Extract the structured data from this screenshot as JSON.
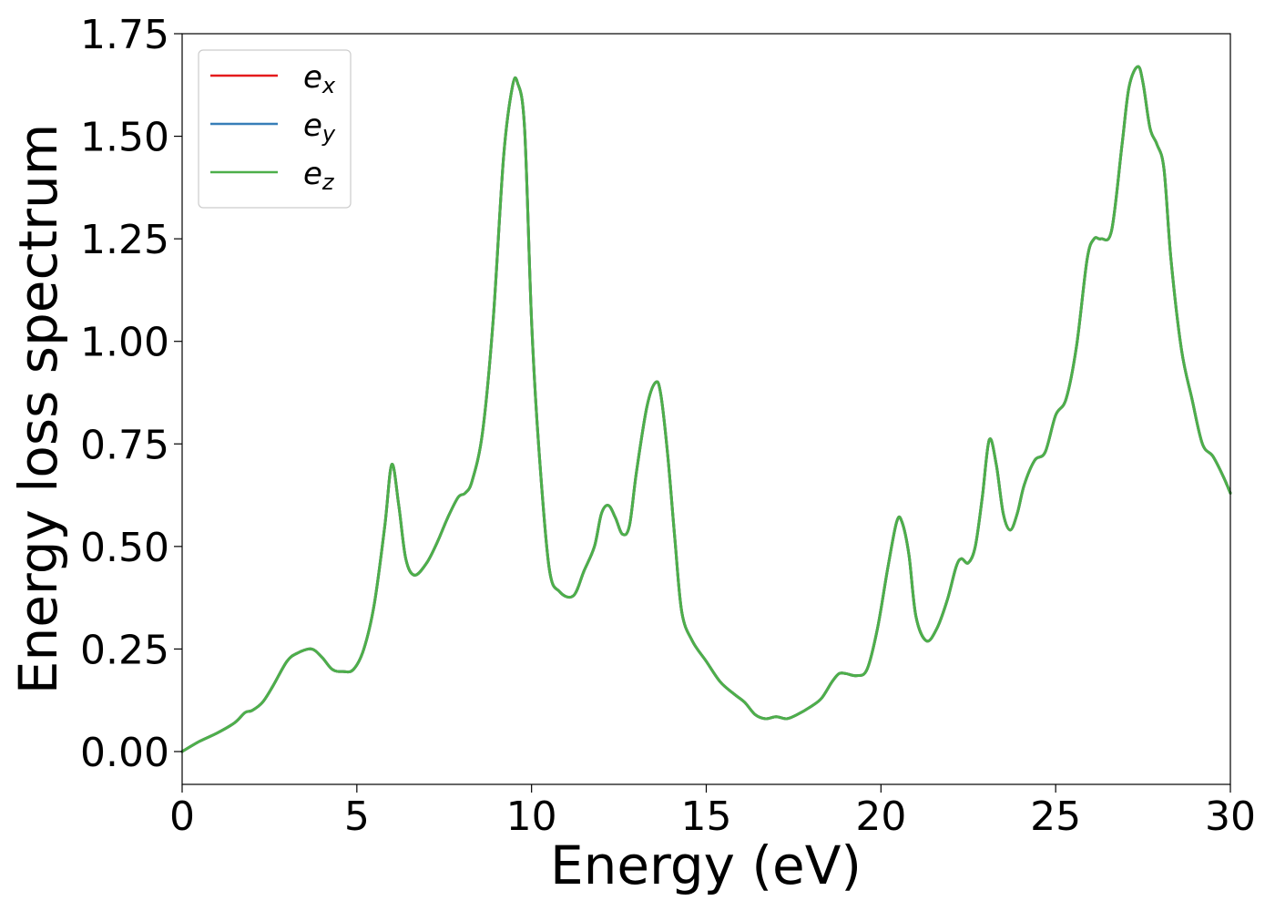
{
  "chart_data": {
    "type": "line",
    "title": "",
    "xlabel": "Energy (eV)",
    "ylabel": "Energy loss spectrum",
    "xlim": [
      0,
      30
    ],
    "ylim": [
      -0.08,
      1.75
    ],
    "xticks": [
      0,
      5,
      10,
      15,
      20,
      25,
      30
    ],
    "xtick_labels": [
      "0",
      "5",
      "10",
      "15",
      "20",
      "25",
      "30"
    ],
    "yticks": [
      0,
      0.25,
      0.5,
      0.75,
      1.0,
      1.25,
      1.5,
      1.75
    ],
    "ytick_labels": [
      "0.00",
      "0.25",
      "0.50",
      "0.75",
      "1.00",
      "1.25",
      "1.50",
      "1.75"
    ],
    "grid": false,
    "legend_position": "top-left",
    "x": [
      0,
      0.5,
      1.0,
      1.5,
      1.8,
      2.0,
      2.3,
      2.6,
      3.0,
      3.3,
      3.7,
      4.0,
      4.3,
      4.6,
      4.9,
      5.2,
      5.5,
      5.8,
      6.0,
      6.2,
      6.4,
      6.65,
      7.0,
      7.3,
      7.6,
      7.9,
      8.1,
      8.3,
      8.6,
      8.9,
      9.2,
      9.45,
      9.6,
      9.8,
      10.0,
      10.2,
      10.5,
      10.8,
      11.2,
      11.5,
      11.8,
      12.0,
      12.2,
      12.4,
      12.6,
      12.8,
      13.0,
      13.3,
      13.55,
      13.7,
      13.9,
      14.1,
      14.3,
      14.6,
      15.0,
      15.4,
      15.8,
      16.1,
      16.4,
      16.7,
      17.0,
      17.3,
      17.6,
      18.0,
      18.3,
      18.6,
      18.8,
      19.0,
      19.3,
      19.6,
      19.9,
      20.2,
      20.45,
      20.6,
      20.8,
      21.0,
      21.3,
      21.6,
      21.9,
      22.15,
      22.3,
      22.5,
      22.7,
      22.9,
      23.1,
      23.3,
      23.5,
      23.7,
      23.9,
      24.1,
      24.4,
      24.7,
      25.0,
      25.3,
      25.6,
      25.9,
      26.1,
      26.3,
      26.6,
      26.9,
      27.1,
      27.35,
      27.5,
      27.7,
      27.9,
      28.1,
      28.3,
      28.6,
      28.9,
      29.2,
      29.5,
      29.8,
      30.0
    ],
    "series": [
      {
        "name": "e_x",
        "color": "#e41a1c",
        "values": [
          0.0,
          0.025,
          0.045,
          0.07,
          0.095,
          0.1,
          0.12,
          0.16,
          0.22,
          0.24,
          0.25,
          0.23,
          0.2,
          0.195,
          0.2,
          0.25,
          0.36,
          0.55,
          0.7,
          0.6,
          0.47,
          0.43,
          0.46,
          0.51,
          0.57,
          0.62,
          0.63,
          0.66,
          0.78,
          1.05,
          1.45,
          1.62,
          1.63,
          1.52,
          1.05,
          0.75,
          0.45,
          0.39,
          0.38,
          0.44,
          0.5,
          0.58,
          0.6,
          0.57,
          0.53,
          0.55,
          0.68,
          0.84,
          0.9,
          0.87,
          0.72,
          0.52,
          0.34,
          0.27,
          0.22,
          0.17,
          0.14,
          0.12,
          0.09,
          0.08,
          0.085,
          0.08,
          0.09,
          0.11,
          0.13,
          0.17,
          0.19,
          0.19,
          0.185,
          0.2,
          0.3,
          0.45,
          0.56,
          0.56,
          0.48,
          0.33,
          0.27,
          0.3,
          0.37,
          0.45,
          0.47,
          0.46,
          0.5,
          0.62,
          0.76,
          0.7,
          0.58,
          0.54,
          0.58,
          0.65,
          0.71,
          0.73,
          0.82,
          0.86,
          0.99,
          1.2,
          1.25,
          1.25,
          1.27,
          1.48,
          1.62,
          1.67,
          1.63,
          1.52,
          1.48,
          1.42,
          1.2,
          0.98,
          0.86,
          0.75,
          0.72,
          0.67,
          0.63
        ]
      },
      {
        "name": "e_y",
        "color": "#377eb8",
        "values": [
          0.0,
          0.025,
          0.045,
          0.07,
          0.095,
          0.1,
          0.12,
          0.16,
          0.22,
          0.24,
          0.25,
          0.23,
          0.2,
          0.195,
          0.2,
          0.25,
          0.36,
          0.55,
          0.7,
          0.6,
          0.47,
          0.43,
          0.46,
          0.51,
          0.57,
          0.62,
          0.63,
          0.66,
          0.78,
          1.05,
          1.45,
          1.62,
          1.63,
          1.52,
          1.05,
          0.75,
          0.45,
          0.39,
          0.38,
          0.44,
          0.5,
          0.58,
          0.6,
          0.57,
          0.53,
          0.55,
          0.68,
          0.84,
          0.9,
          0.87,
          0.72,
          0.52,
          0.34,
          0.27,
          0.22,
          0.17,
          0.14,
          0.12,
          0.09,
          0.08,
          0.085,
          0.08,
          0.09,
          0.11,
          0.13,
          0.17,
          0.19,
          0.19,
          0.185,
          0.2,
          0.3,
          0.45,
          0.56,
          0.56,
          0.48,
          0.33,
          0.27,
          0.3,
          0.37,
          0.45,
          0.47,
          0.46,
          0.5,
          0.62,
          0.76,
          0.7,
          0.58,
          0.54,
          0.58,
          0.65,
          0.71,
          0.73,
          0.82,
          0.86,
          0.99,
          1.2,
          1.25,
          1.25,
          1.27,
          1.48,
          1.62,
          1.67,
          1.63,
          1.52,
          1.48,
          1.42,
          1.2,
          0.98,
          0.86,
          0.75,
          0.72,
          0.67,
          0.63
        ]
      },
      {
        "name": "e_z",
        "color": "#4daf4a",
        "values": [
          0.0,
          0.025,
          0.045,
          0.07,
          0.095,
          0.1,
          0.12,
          0.16,
          0.22,
          0.24,
          0.25,
          0.23,
          0.2,
          0.195,
          0.2,
          0.25,
          0.36,
          0.55,
          0.7,
          0.6,
          0.47,
          0.43,
          0.46,
          0.51,
          0.57,
          0.62,
          0.63,
          0.66,
          0.78,
          1.05,
          1.45,
          1.62,
          1.63,
          1.52,
          1.05,
          0.75,
          0.45,
          0.39,
          0.38,
          0.44,
          0.5,
          0.58,
          0.6,
          0.57,
          0.53,
          0.55,
          0.68,
          0.84,
          0.9,
          0.87,
          0.72,
          0.52,
          0.34,
          0.27,
          0.22,
          0.17,
          0.14,
          0.12,
          0.09,
          0.08,
          0.085,
          0.08,
          0.09,
          0.11,
          0.13,
          0.17,
          0.19,
          0.19,
          0.185,
          0.2,
          0.3,
          0.45,
          0.56,
          0.56,
          0.48,
          0.33,
          0.27,
          0.3,
          0.37,
          0.45,
          0.47,
          0.46,
          0.5,
          0.62,
          0.76,
          0.7,
          0.58,
          0.54,
          0.58,
          0.65,
          0.71,
          0.73,
          0.82,
          0.86,
          0.99,
          1.2,
          1.25,
          1.25,
          1.27,
          1.48,
          1.62,
          1.67,
          1.63,
          1.52,
          1.48,
          1.42,
          1.2,
          0.98,
          0.86,
          0.75,
          0.72,
          0.67,
          0.63
        ]
      }
    ]
  }
}
